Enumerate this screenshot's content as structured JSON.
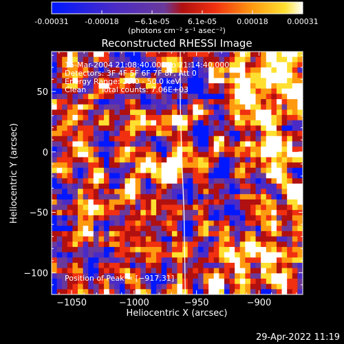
{
  "chart_data": {
    "type": "heatmap",
    "title": "Reconstructed RHESSI Image",
    "xlabel": "Heliocentric X (arcsec)",
    "ylabel": "Heliocentric Y (arcsec)",
    "xlim": [
      -1066,
      -865
    ],
    "ylim": [
      -118,
      83
    ],
    "xticks": [
      -1050,
      -1000,
      -950,
      -900
    ],
    "xtick_labels": [
      "−1050",
      "−1000",
      "−950",
      "−900"
    ],
    "yticks": [
      50,
      0,
      -50,
      -100
    ],
    "ytick_labels": [
      "50",
      "0",
      "−50",
      "−100"
    ],
    "colorbar": {
      "range": [
        -0.00031,
        0.00031
      ],
      "tick_labels": [
        "-0.00031",
        "-0.00018",
        "−6.1e-05",
        "6.1e-05",
        "0.00018",
        "0.00031"
      ],
      "unit_label": "(photons cm⁻² s⁻¹ asec⁻²)",
      "colors": [
        "#0018ff",
        "#4a2bc6",
        "#6a3a9a",
        "#b01010",
        "#f03010",
        "#ff9a10",
        "#ffe030",
        "#ffffff"
      ]
    },
    "annotations": [
      "15-Mar-2004 21:08:40.000 to 21:14:40.000",
      "Detectors: 3F 4F 5F 6F 7F 8F, Att 0",
      "Energy Range: 25.0 - 50.0 keV",
      "Clean      Total counts: 7.06E+03"
    ],
    "peak_label": "Position of Peak = [−917,31]",
    "limb_line": [
      [
        -963,
        83
      ],
      [
        -963,
        40
      ],
      [
        -962,
        0
      ],
      [
        -960,
        -50
      ],
      [
        -959,
        -118
      ]
    ],
    "grid": false,
    "field_pattern": "noisy emission field; bright sources at right (x≈-880..-865, y≈40..-40) and lower right; faint purple background"
  },
  "timestamp": "29-Apr-2022 11:19"
}
